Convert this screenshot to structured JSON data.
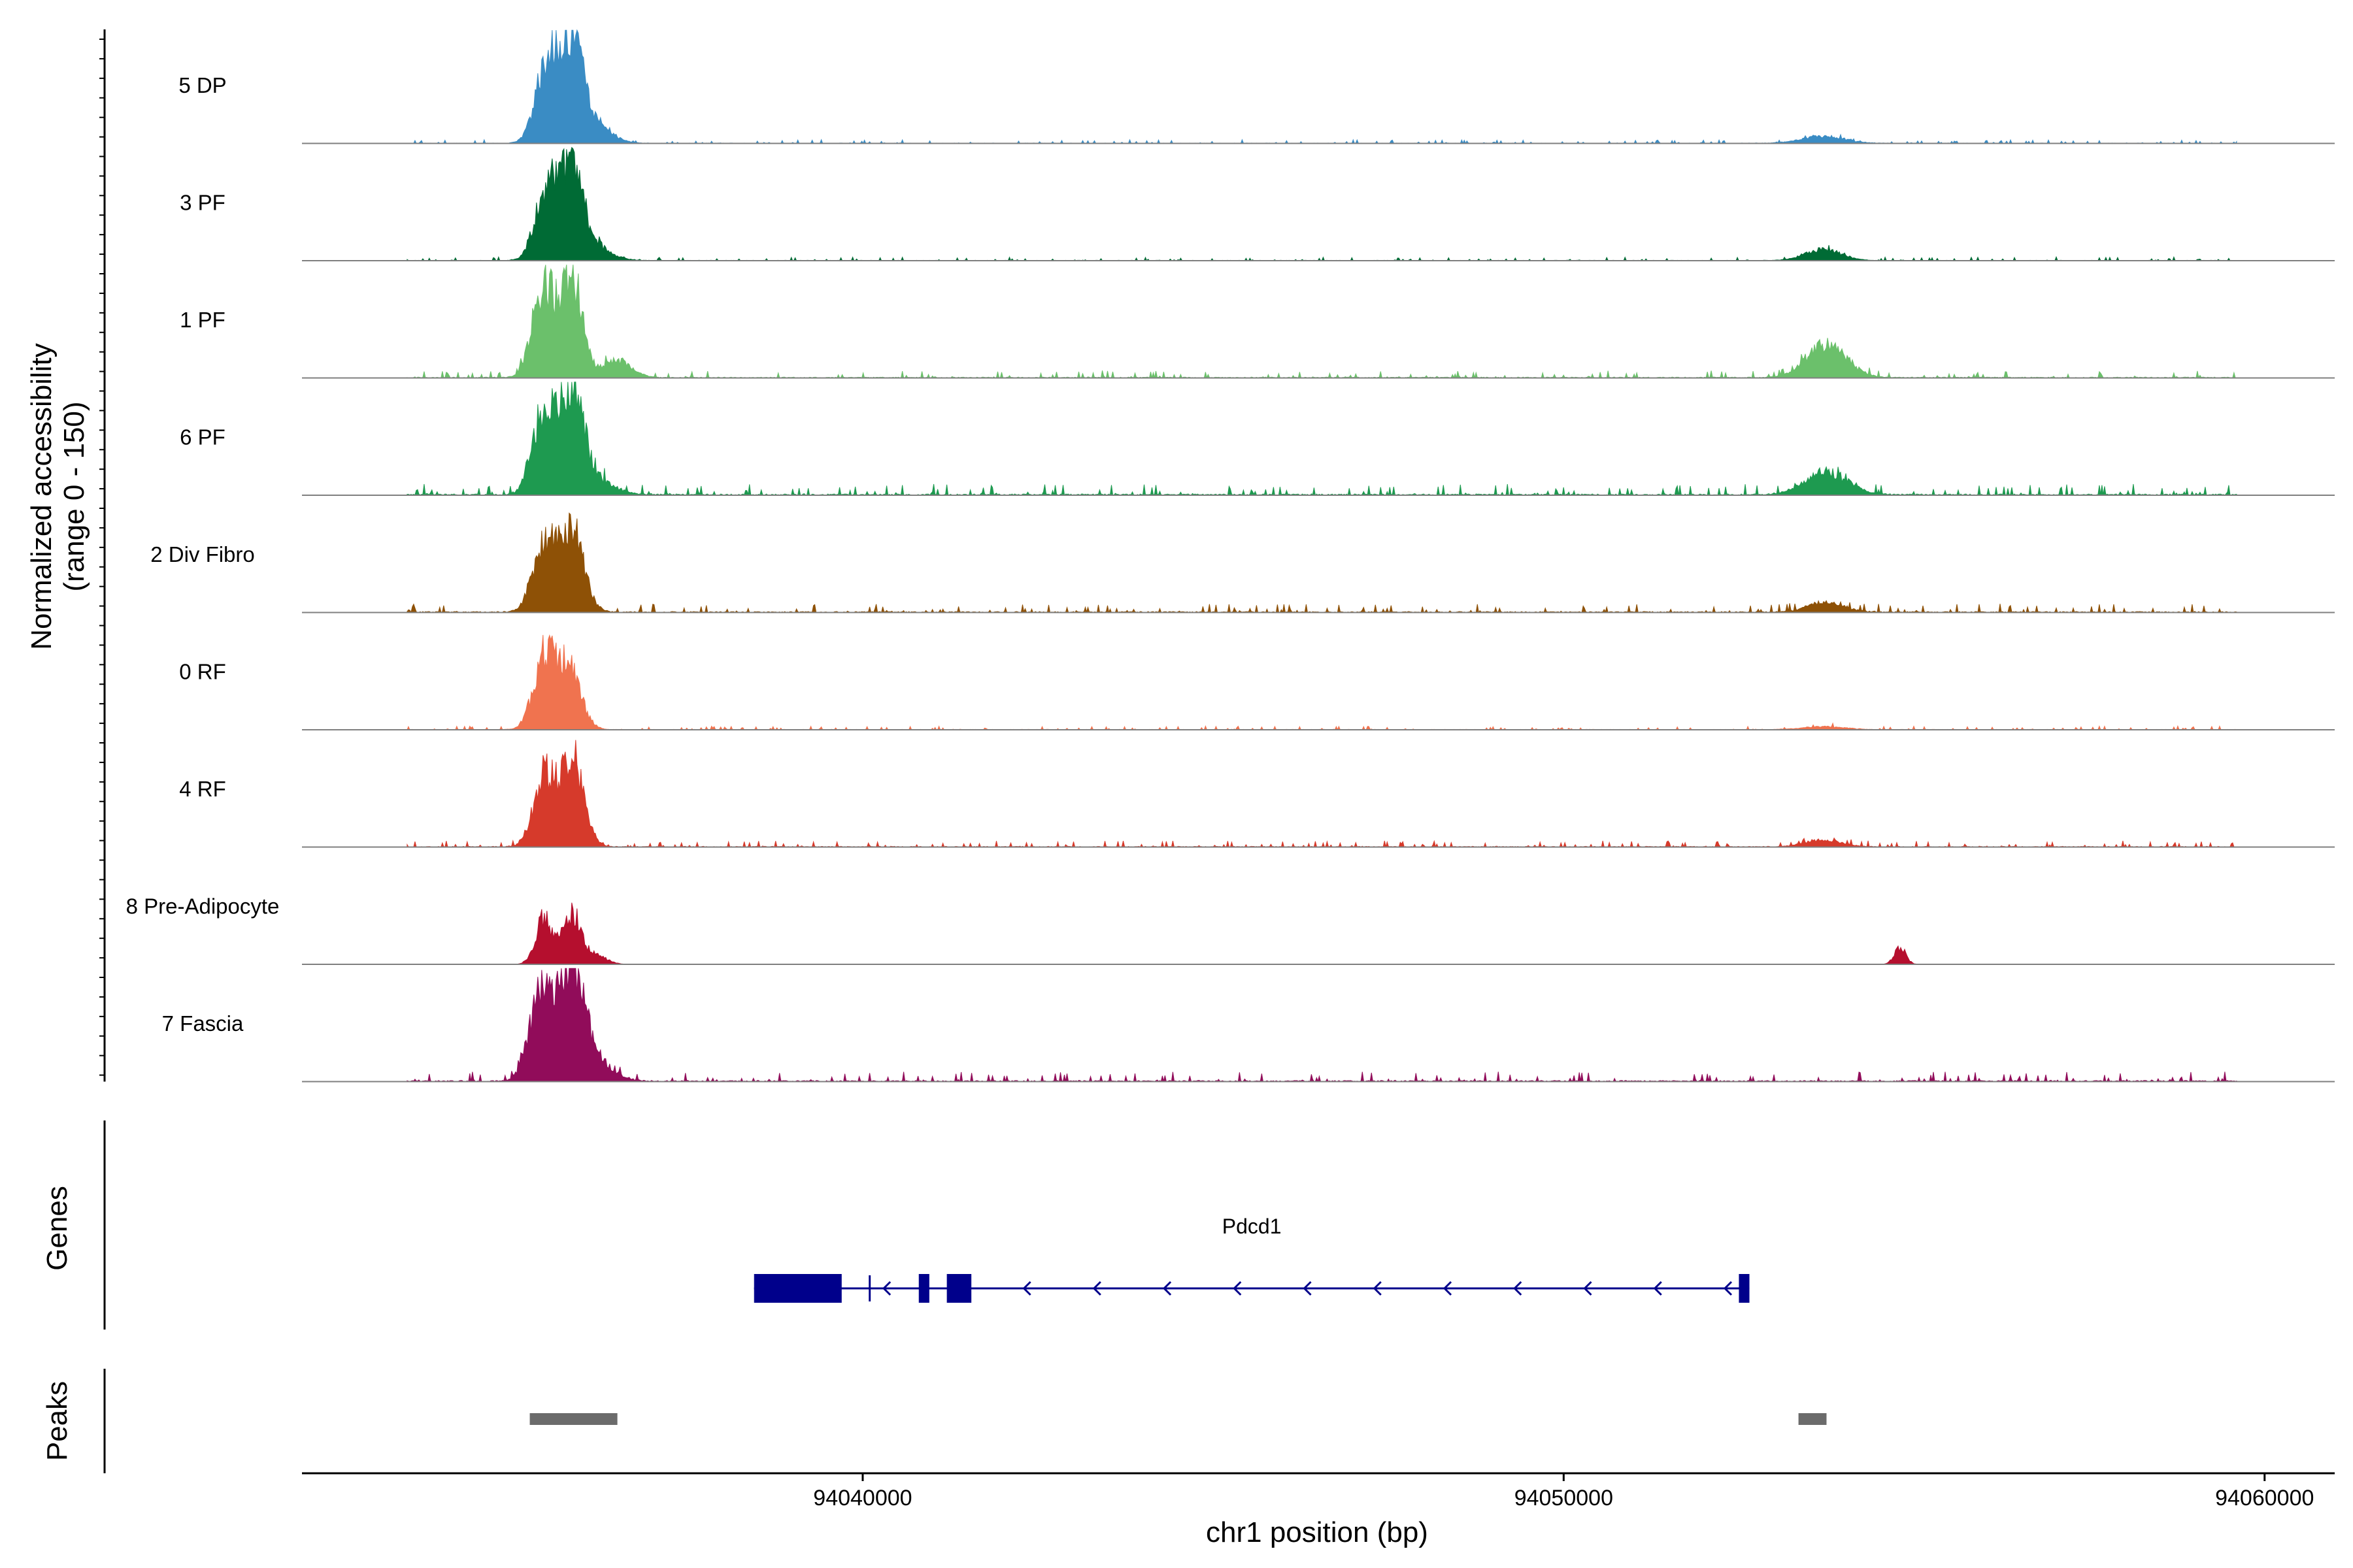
{
  "chart_data": {
    "type": "area",
    "title": "",
    "xlabel": "chr1 position (bp)",
    "ylabel_line1": "Normalized accessibility",
    "ylabel_line2": "(range 0 - 150)",
    "y_range": [
      0,
      150
    ],
    "x_range": [
      94032000,
      94061000
    ],
    "x_ticks": [
      {
        "value": 94040000,
        "label": "94040000"
      },
      {
        "value": 94050000,
        "label": "94050000"
      },
      {
        "value": 94060000,
        "label": "94060000"
      }
    ],
    "tracks_panel_label": "Genes",
    "peaks_panel_label": "Peaks",
    "series": [
      {
        "name": "5 DP",
        "color": "#3A8CC4",
        "peaks": [
          [
            94035500,
            150,
            160
          ],
          [
            94035850,
            160,
            150
          ],
          [
            94036100,
            40,
            250
          ],
          [
            94053700,
            12,
            300
          ]
        ],
        "noise": 3,
        "seed": 11
      },
      {
        "name": "3 PF",
        "color": "#006B35",
        "peaks": [
          [
            94035500,
            130,
            160
          ],
          [
            94035850,
            140,
            150
          ],
          [
            94036100,
            30,
            250
          ],
          [
            94053700,
            20,
            250
          ]
        ],
        "noise": 3,
        "seed": 12
      },
      {
        "name": "1 PF",
        "color": "#6BC06B",
        "peaks": [
          [
            94035450,
            160,
            160
          ],
          [
            94035850,
            175,
            150
          ],
          [
            94036500,
            30,
            200
          ],
          [
            94053750,
            60,
            280
          ]
        ],
        "noise": 6,
        "seed": 13
      },
      {
        "name": "6 PF",
        "color": "#1E9A50",
        "peaks": [
          [
            94035450,
            150,
            160
          ],
          [
            94035850,
            180,
            160
          ],
          [
            94036200,
            25,
            250
          ],
          [
            94053750,
            40,
            300
          ]
        ],
        "noise": 9,
        "seed": 14
      },
      {
        "name": "2 Div Fibro",
        "color": "#8E5106",
        "peaks": [
          [
            94035450,
            120,
            160
          ],
          [
            94035850,
            145,
            170
          ],
          [
            94053750,
            18,
            250
          ]
        ],
        "noise": 7,
        "seed": 15
      },
      {
        "name": "0 RF",
        "color": "#F0734F",
        "peaks": [
          [
            94035450,
            125,
            150
          ],
          [
            94035800,
            110,
            170
          ],
          [
            94053700,
            5,
            300
          ]
        ],
        "noise": 3,
        "seed": 16
      },
      {
        "name": "4 RF",
        "color": "#D63A2B",
        "peaks": [
          [
            94035450,
            125,
            150
          ],
          [
            94035850,
            160,
            160
          ],
          [
            94053700,
            12,
            250
          ]
        ],
        "noise": 5,
        "seed": 17
      },
      {
        "name": "8 Pre-Adipocyte",
        "color": "#B50F2E",
        "peaks": [
          [
            94035450,
            80,
            120
          ],
          [
            94035850,
            90,
            130
          ],
          [
            94036200,
            15,
            150
          ],
          [
            94054800,
            30,
            80
          ]
        ],
        "noise": 0,
        "seed": 18
      },
      {
        "name": "7 Fascia",
        "color": "#910C5A",
        "peaks": [
          [
            94035400,
            150,
            160
          ],
          [
            94035850,
            200,
            180
          ],
          [
            94036200,
            30,
            250
          ]
        ],
        "noise": 8,
        "seed": 19
      }
    ],
    "gene": {
      "name": "Pdcd1",
      "start": 94038450,
      "end": 94052650,
      "strand": "-",
      "exons": [
        [
          94038450,
          94039700
        ],
        [
          94040800,
          94040950
        ],
        [
          94041200,
          94041550
        ],
        [
          94052500,
          94052650
        ]
      ]
    },
    "peak_regions": [
      [
        94035250,
        94036500
      ],
      [
        94053350,
        94053750
      ]
    ]
  }
}
